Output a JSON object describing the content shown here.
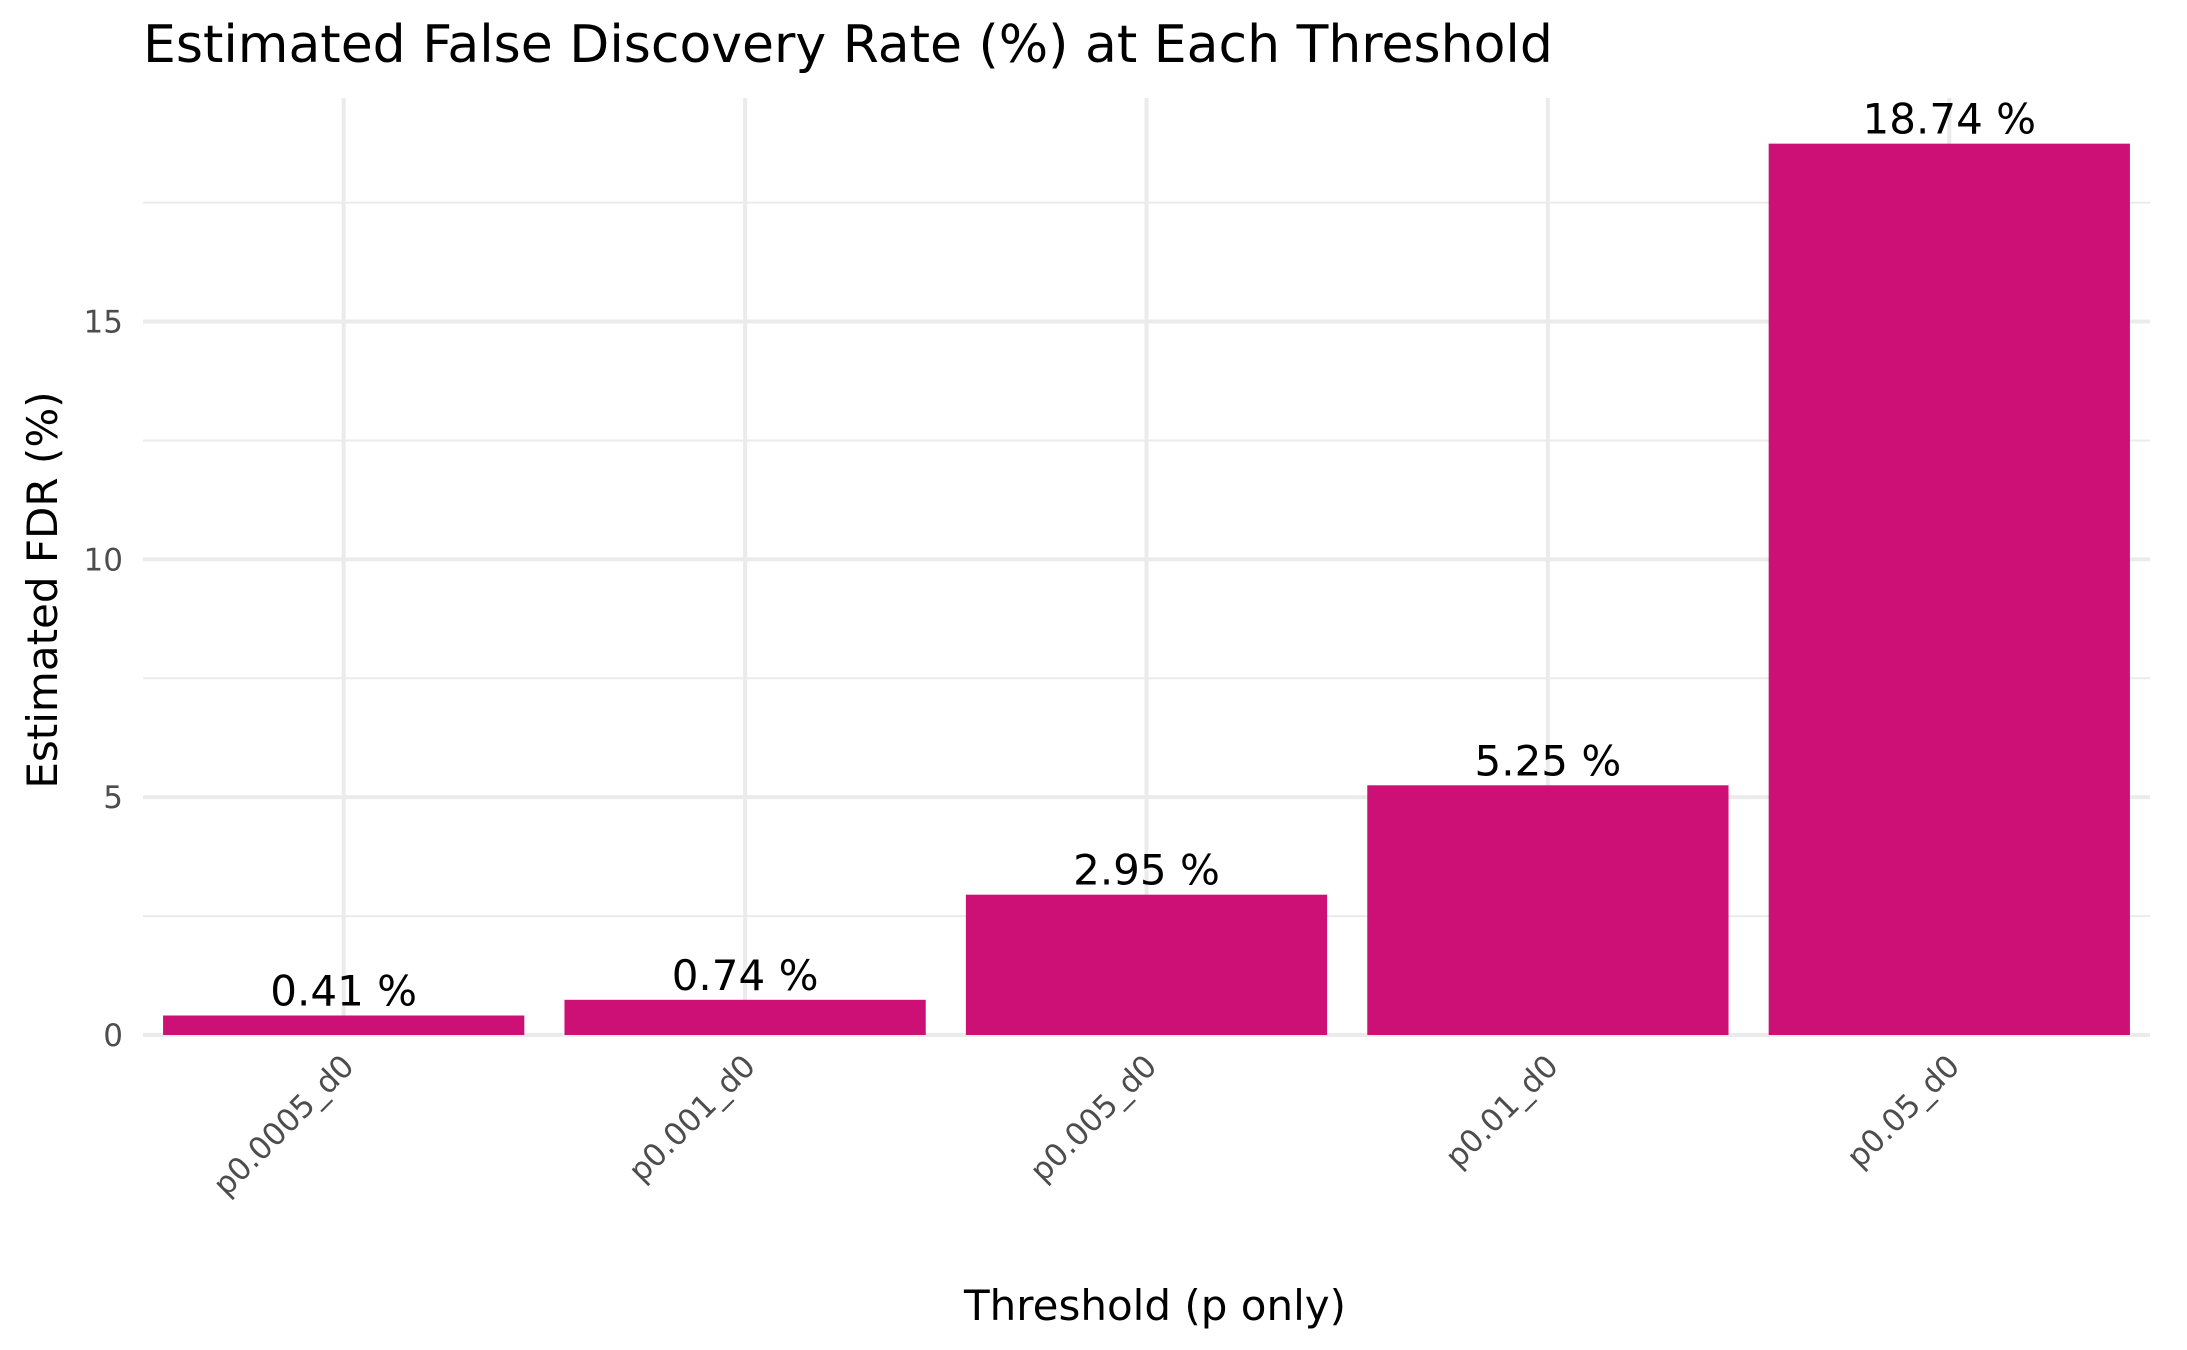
{
  "chart_data": {
    "type": "bar",
    "title": "Estimated False Discovery Rate (%) at Each Threshold",
    "xlabel": "Threshold (p only)",
    "ylabel": "Estimated FDR (%)",
    "categories": [
      "p0.0005_d0",
      "p0.001_d0",
      "p0.005_d0",
      "p0.01_d0",
      "p0.05_d0"
    ],
    "values": [
      0.41,
      0.74,
      2.95,
      5.25,
      18.74
    ],
    "data_labels": [
      "0.41 %",
      "0.74 %",
      "2.95 %",
      "5.25 %",
      "18.74 %"
    ],
    "yticks": [
      0,
      5,
      10,
      15
    ],
    "ytick_labels": [
      "0",
      "5",
      "10",
      "15"
    ],
    "ylim": [
      0,
      19.7
    ],
    "grid": true,
    "legend": "none",
    "bar_color": "#CD1076"
  }
}
